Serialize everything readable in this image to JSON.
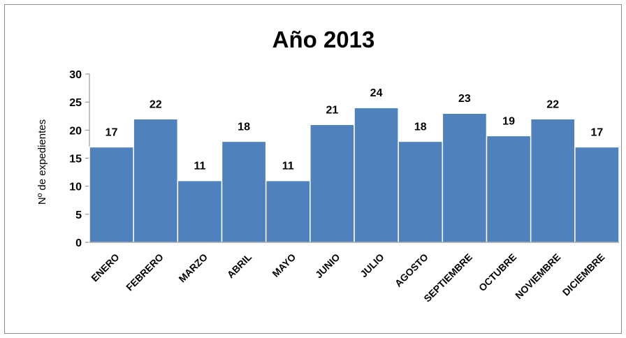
{
  "chart_data": {
    "type": "bar",
    "title": "Año 2013",
    "xlabel": "",
    "ylabel": "Nº de expedientes",
    "ylim": [
      0,
      30
    ],
    "yticks": [
      0,
      5,
      10,
      15,
      20,
      25,
      30
    ],
    "categories": [
      "ENERO",
      "FEBRERO",
      "MARZO",
      "ABRIL",
      "MAYO",
      "JUNIO",
      "JULIO",
      "AGOSTO",
      "SEPTIEMBRE",
      "OCTUBRE",
      "NOVIEMBRE",
      "DICIEMBRE"
    ],
    "values": [
      17,
      22,
      11,
      18,
      11,
      21,
      24,
      18,
      23,
      19,
      22,
      17
    ],
    "data_labels": [
      "17",
      "22",
      "11",
      "18",
      "11",
      "21",
      "24",
      "18",
      "23",
      "19",
      "22",
      "17"
    ],
    "grid": false,
    "legend": "none",
    "bar_color": "#4f81bd"
  }
}
